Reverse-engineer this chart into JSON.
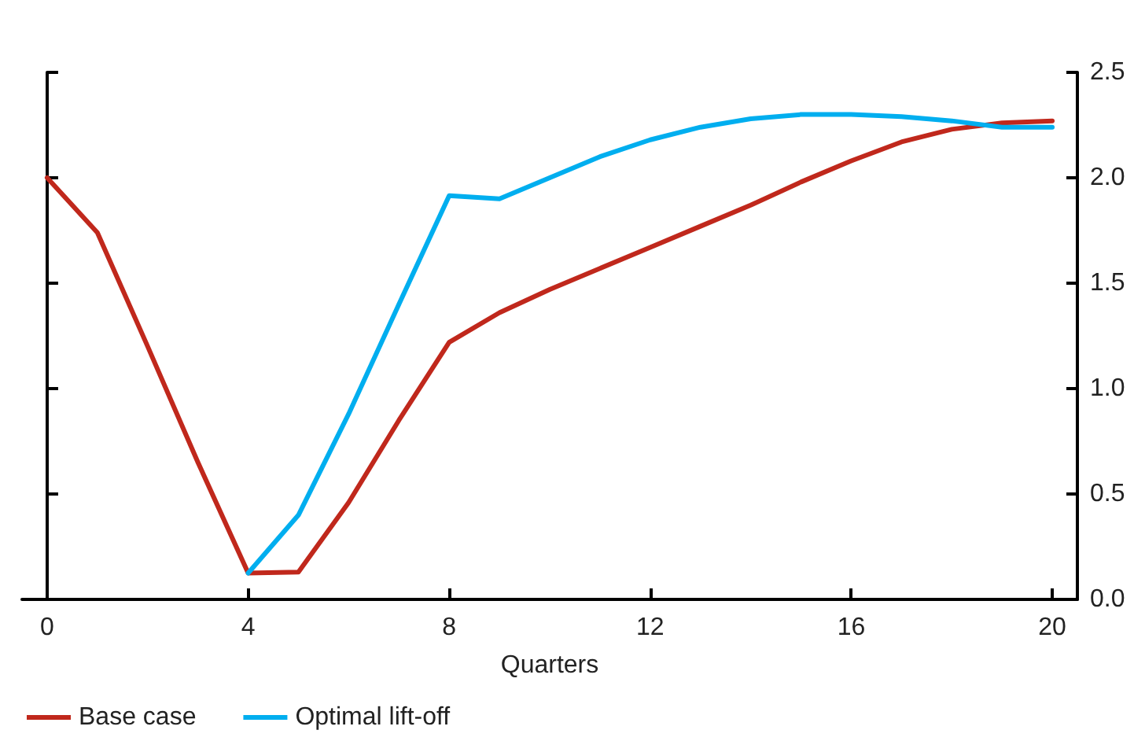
{
  "chart_data": {
    "type": "line",
    "xlabel": "Quarters",
    "x": [
      0,
      1,
      2,
      3,
      4,
      5,
      6,
      7,
      8,
      9,
      10,
      11,
      12,
      13,
      14,
      15,
      16,
      17,
      18,
      19,
      20
    ],
    "series": [
      {
        "name": "Base case",
        "color": "#c0281c",
        "values": [
          2.0,
          1.74,
          1.2,
          0.65,
          0.125,
          0.13,
          0.46,
          0.85,
          1.22,
          1.36,
          1.47,
          1.57,
          1.67,
          1.77,
          1.87,
          1.98,
          2.08,
          2.17,
          2.23,
          2.26,
          2.27
        ]
      },
      {
        "name": "Optimal lift-off",
        "color": "#00aeef",
        "values": [
          null,
          null,
          null,
          null,
          0.125,
          0.4,
          0.88,
          1.4,
          1.915,
          1.9,
          2.0,
          2.1,
          2.18,
          2.24,
          2.28,
          2.3,
          2.3,
          2.29,
          2.27,
          2.24,
          2.24
        ]
      }
    ],
    "xlim": [
      -0.5,
      20.5
    ],
    "xticks": [
      0,
      4,
      8,
      12,
      16,
      20
    ],
    "ylim": [
      0,
      2.5
    ],
    "yticks": [
      {
        "value": 0,
        "label": "0.0"
      },
      {
        "value": 0.5,
        "label": "0.5"
      },
      {
        "value": 1,
        "label": "1.0"
      },
      {
        "value": 1.5,
        "label": "1.5"
      },
      {
        "value": 2,
        "label": "2.0"
      },
      {
        "value": 2.5,
        "label": "2.5"
      }
    ],
    "legend": "bottom left",
    "marker": "none",
    "line_style": "solid"
  }
}
